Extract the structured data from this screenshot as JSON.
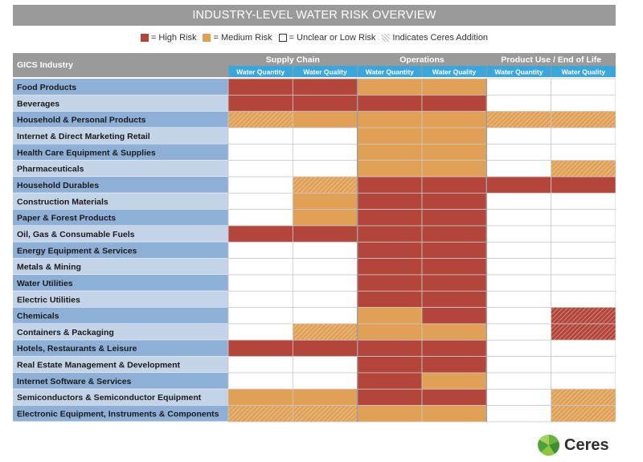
{
  "title": "INDUSTRY-LEVEL WATER RISK OVERVIEW",
  "colors": {
    "high": "#b3453a",
    "medium": "#e0a055",
    "low": "#ffffff",
    "header_group": "#9a9a9a",
    "header_sub": "#3aa7dc",
    "row_dark": "#8fb0d6",
    "row_light": "#c3d3e8",
    "grid": "#c9c9c9",
    "hatch": "#ffffff"
  },
  "legend": [
    {
      "key": "high",
      "label": "= High Risk"
    },
    {
      "key": "medium",
      "label": "= Medium Risk"
    },
    {
      "key": "low",
      "label": "= Unclear or Low Risk"
    },
    {
      "key": "hatch",
      "label": "Indicates Ceres Addition"
    }
  ],
  "chart_data": {
    "type": "table",
    "corner_label": "GICS Industry",
    "groups": [
      "Supply Chain",
      "Operations",
      "Product Use / End of Life"
    ],
    "columns": [
      "Water Quantity",
      "Water Quality",
      "Water Quantity",
      "Water Quality",
      "Water Quantity",
      "Water Quality"
    ],
    "rows": [
      {
        "industry": "Food Products",
        "cells": [
          "H",
          "H",
          "M",
          "M",
          "L",
          "L"
        ]
      },
      {
        "industry": "Beverages",
        "cells": [
          "H",
          "H",
          "H",
          "H",
          "L",
          "L"
        ]
      },
      {
        "industry": "Household & Personal Products",
        "cells": [
          "M*",
          "M",
          "M",
          "M",
          "M*",
          "M*"
        ]
      },
      {
        "industry": "Internet & Direct Marketing Retail",
        "cells": [
          "L",
          "L",
          "M",
          "M",
          "L",
          "L"
        ]
      },
      {
        "industry": "Health Care Equipment & Supplies",
        "cells": [
          "L",
          "L",
          "M",
          "M",
          "L",
          "L"
        ]
      },
      {
        "industry": "Pharmaceuticals",
        "cells": [
          "L",
          "L",
          "M",
          "M",
          "L",
          "M*"
        ]
      },
      {
        "industry": "Household Durables",
        "cells": [
          "L",
          "M*",
          "H",
          "H",
          "H",
          "H"
        ]
      },
      {
        "industry": "Construction Materials",
        "cells": [
          "L",
          "M",
          "H",
          "H",
          "L",
          "L"
        ]
      },
      {
        "industry": "Paper & Forest Products",
        "cells": [
          "L",
          "M",
          "H",
          "H",
          "L",
          "L"
        ]
      },
      {
        "industry": "Oil, Gas & Consumable Fuels",
        "cells": [
          "H",
          "H",
          "H",
          "H",
          "L",
          "L"
        ]
      },
      {
        "industry": "Energy Equipment & Services",
        "cells": [
          "L",
          "L",
          "H",
          "H",
          "L",
          "L"
        ]
      },
      {
        "industry": "Metals & Mining",
        "cells": [
          "L",
          "L",
          "H",
          "H",
          "L",
          "L"
        ]
      },
      {
        "industry": "Water Utilities",
        "cells": [
          "L",
          "L",
          "H",
          "H",
          "L",
          "L"
        ]
      },
      {
        "industry": "Electric Utilities",
        "cells": [
          "L",
          "L",
          "H",
          "H",
          "L",
          "L"
        ]
      },
      {
        "industry": "Chemicals",
        "cells": [
          "L",
          "L",
          "M",
          "H",
          "L",
          "H*"
        ]
      },
      {
        "industry": "Containers & Packaging",
        "cells": [
          "L",
          "M*",
          "M",
          "M",
          "L",
          "H*"
        ]
      },
      {
        "industry": "Hotels, Restaurants & Leisure",
        "cells": [
          "H",
          "H",
          "H",
          "H",
          "L",
          "L"
        ]
      },
      {
        "industry": "Real Estate Management & Development",
        "cells": [
          "L",
          "L",
          "H",
          "H",
          "L",
          "L"
        ]
      },
      {
        "industry": "Internet Software & Services",
        "cells": [
          "L",
          "L",
          "H",
          "M",
          "L",
          "L"
        ]
      },
      {
        "industry": "Semiconductors & Semiconductor Equipment",
        "cells": [
          "M",
          "M",
          "H",
          "H",
          "L",
          "M*"
        ]
      },
      {
        "industry": "Electronic Equipment, Instruments & Components",
        "cells": [
          "M*",
          "M*",
          "M",
          "M",
          "L",
          "M*"
        ]
      }
    ],
    "cell_codes": {
      "H": "high",
      "M": "medium",
      "L": "low",
      "*": "Ceres addition"
    }
  },
  "logo": {
    "text": "Ceres"
  }
}
